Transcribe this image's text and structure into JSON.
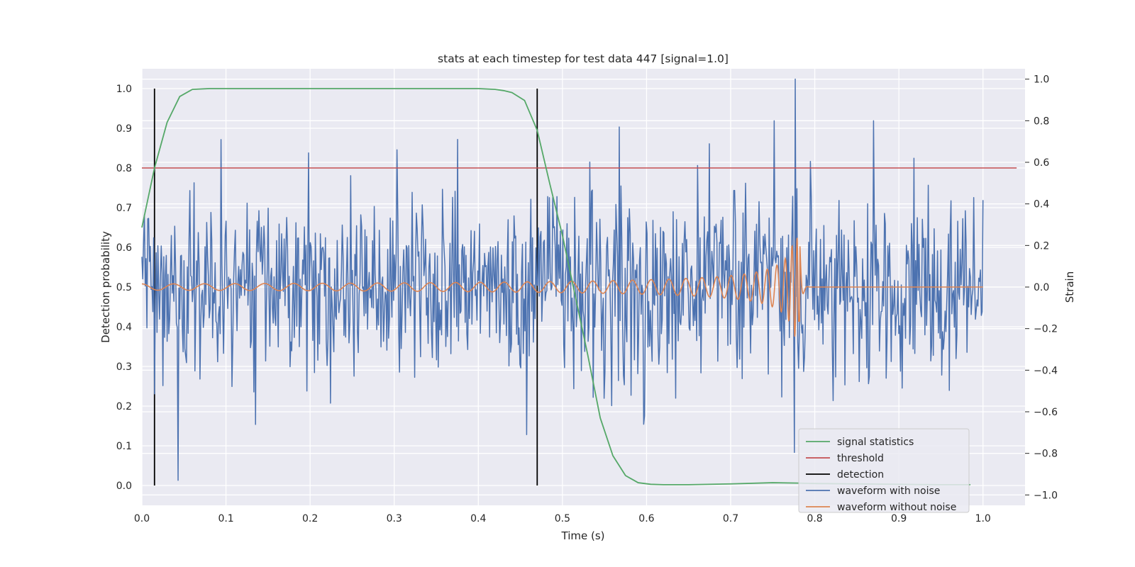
{
  "chart_data": {
    "type": "line",
    "title": "stats at each timestep for test data 447 [signal=1.0]",
    "xlabel": "Time (s)",
    "ylabel_left": "Detection probability",
    "ylabel_right": "Strain",
    "xlim": [
      0.0,
      1.05
    ],
    "ylim_left": [
      -0.05,
      1.05
    ],
    "ylim_right": [
      -1.05,
      1.05
    ],
    "x_ticks": [
      "0.0",
      "0.1",
      "0.2",
      "0.3",
      "0.4",
      "0.5",
      "0.6",
      "0.7",
      "0.8",
      "0.9",
      "1.0"
    ],
    "y_ticks_left": [
      "0.0",
      "0.1",
      "0.2",
      "0.3",
      "0.4",
      "0.5",
      "0.6",
      "0.7",
      "0.8",
      "0.9",
      "1.0"
    ],
    "y_ticks_right": [
      "−1.0",
      "−0.8",
      "−0.6",
      "−0.4",
      "−0.2",
      "0.0",
      "0.2",
      "0.4",
      "0.6",
      "0.8",
      "1.0"
    ],
    "grid": true,
    "legend_position": "lower-right",
    "colors": {
      "signal_statistics": "#55a868",
      "threshold": "#c44e52",
      "detection": "#000000",
      "waveform_with_noise": "#4c72b0",
      "waveform_without_noise": "#dd8452",
      "plot_background": "#eaeaf2",
      "grid": "#ffffff"
    },
    "series": [
      {
        "name": "signal statistics",
        "axis": "left",
        "x": [
          0.0,
          0.015,
          0.03,
          0.045,
          0.06,
          0.08,
          0.1,
          0.15,
          0.2,
          0.3,
          0.4,
          0.42,
          0.43,
          0.44,
          0.455,
          0.47,
          0.485,
          0.5,
          0.515,
          0.53,
          0.545,
          0.56,
          0.575,
          0.59,
          0.605,
          0.62,
          0.65,
          0.7,
          0.75,
          0.78,
          0.8,
          0.85,
          0.9,
          0.95,
          0.985
        ],
        "y": [
          0.65,
          0.8,
          0.915,
          0.98,
          0.998,
          1.0,
          1.0,
          1.0,
          1.0,
          1.0,
          1.0,
          0.998,
          0.995,
          0.99,
          0.97,
          0.895,
          0.76,
          0.63,
          0.48,
          0.33,
          0.17,
          0.075,
          0.025,
          0.007,
          0.003,
          0.002,
          0.002,
          0.004,
          0.007,
          0.006,
          0.005,
          0.004,
          0.003,
          0.002,
          0.002
        ]
      },
      {
        "name": "threshold",
        "axis": "left",
        "x": [
          0.0,
          1.04
        ],
        "y": [
          0.8,
          0.8
        ]
      },
      {
        "name": "detection",
        "axis": "left",
        "vlines_x": [
          0.015,
          0.47
        ],
        "ymin": 0.0,
        "ymax": 1.0
      },
      {
        "name": "waveform with noise",
        "axis": "right",
        "t_start": 0.0,
        "t_end": 1.0,
        "n_samples": 1000,
        "noise_std": 0.22,
        "y_range": [
          -0.93,
          1.0
        ],
        "notable_peaks": [
          [
            0.043,
            -0.93
          ],
          [
            0.303,
            0.66
          ],
          [
            0.375,
            0.71
          ],
          [
            0.457,
            -0.71
          ],
          [
            0.568,
            0.77
          ],
          [
            0.597,
            -0.66
          ],
          [
            0.752,
            0.8
          ],
          [
            0.777,
            1.0
          ],
          [
            0.87,
            0.8
          ]
        ]
      },
      {
        "name": "waveform without noise",
        "axis": "right",
        "description_free": true,
        "t_start": 0.0,
        "t_merger": 0.782,
        "t_end": 1.0,
        "amp_start": 0.015,
        "amp_peak": 0.24,
        "freq_start": 12,
        "freq_peak": 80
      }
    ]
  },
  "legend": {
    "items": [
      {
        "label": "signal statistics",
        "color": "#55a868"
      },
      {
        "label": "threshold",
        "color": "#c44e52"
      },
      {
        "label": "detection",
        "color": "#000000"
      },
      {
        "label": "waveform with noise",
        "color": "#4c72b0"
      },
      {
        "label": "waveform without noise",
        "color": "#dd8452"
      }
    ]
  }
}
